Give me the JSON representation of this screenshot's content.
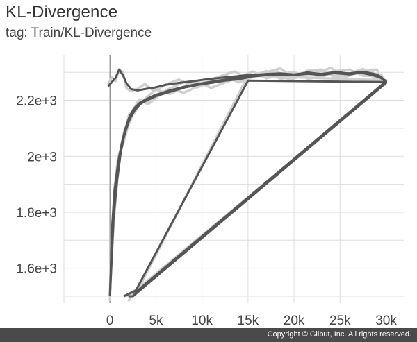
{
  "header": {
    "title": "KL-Divergence",
    "subtitle": "tag: Train/KL-Divergence"
  },
  "footer": {
    "copyright": "Copyright © Gilbut, Inc. All rights reserved."
  },
  "chart_data": {
    "type": "line",
    "title": "KL-Divergence",
    "subtitle": "tag: Train/KL-Divergence",
    "xlabel": "",
    "ylabel": "",
    "xlim": [
      -5000,
      32000
    ],
    "ylim": [
      1500,
      2360
    ],
    "x_ticks": [
      0,
      5000,
      10000,
      15000,
      20000,
      25000,
      30000
    ],
    "x_tick_labels": [
      "0",
      "5k",
      "10k",
      "15k",
      "20k",
      "25k",
      "30k"
    ],
    "y_ticks": [
      1600,
      1800,
      2000,
      2200
    ],
    "y_tick_labels": [
      "1.6e+3",
      "1.8e+3",
      "2e+3",
      "2.2e+3"
    ],
    "grid": true,
    "legend": false,
    "colors": {
      "smoothed": "#555555",
      "raw": "#cfcfcf",
      "grid": "#dddddd"
    },
    "series": [
      {
        "x": [
          0,
          200,
          500,
          900,
          1300,
          1700,
          2100,
          2600,
          3200,
          4000,
          5000,
          6500,
          8000,
          9500,
          11000,
          12500,
          14000,
          15500,
          17000,
          18500,
          20000,
          21500,
          23000,
          24500,
          26000,
          27500,
          29000,
          29500,
          30000
        ],
        "y": [
          1500,
          1730,
          1880,
          1980,
          2050,
          2100,
          2140,
          2170,
          2190,
          2205,
          2220,
          2235,
          2245,
          2255,
          2262,
          2270,
          2275,
          2285,
          2290,
          2292,
          2290,
          2295,
          2290,
          2298,
          2292,
          2300,
          2288,
          2278,
          2270
        ]
      },
      {
        "x": [
          0,
          300,
          700,
          1100,
          1500,
          2000,
          2500,
          3200,
          4000,
          5000,
          6500,
          8000,
          9500,
          11000,
          12500,
          14000,
          15500,
          17000,
          18500,
          20000,
          21500,
          23000,
          24500,
          26000,
          27500,
          29000,
          29500,
          30000,
          15000,
          2800,
          1500
        ],
        "y": [
          1500,
          1760,
          1900,
          2000,
          2070,
          2120,
          2160,
          2185,
          2200,
          2215,
          2230,
          2245,
          2255,
          2265,
          2272,
          2280,
          2288,
          2292,
          2295,
          2290,
          2300,
          2292,
          2302,
          2295,
          2300,
          2290,
          2280,
          2265,
          2270,
          1520,
          1500
        ]
      },
      {
        "x": [
          0,
          400,
          800,
          1200,
          1600,
          2100,
          2700,
          3400,
          4200,
          5200,
          6500,
          8000,
          9500,
          11000,
          12500,
          14000,
          15500,
          17000,
          18500,
          20000,
          21500,
          23000,
          24500,
          26000,
          27500,
          29000,
          29500,
          30000,
          2500,
          2000
        ],
        "y": [
          1500,
          1780,
          1920,
          2020,
          2080,
          2130,
          2165,
          2190,
          2205,
          2220,
          2235,
          2248,
          2258,
          2266,
          2274,
          2282,
          2290,
          2294,
          2296,
          2292,
          2298,
          2294,
          2300,
          2296,
          2302,
          2292,
          2282,
          2262,
          1500,
          1500
        ]
      },
      {
        "x": [
          -200,
          200,
          600,
          1000,
          1400,
          1800,
          2300,
          3000,
          3800,
          4800,
          6000,
          7500,
          9000,
          10500,
          12000,
          13500,
          15000,
          16500,
          18000,
          19500,
          21000,
          22500,
          24000,
          25500,
          27000,
          28500,
          29500,
          30000,
          3000,
          2500
        ],
        "y": [
          2250,
          2265,
          2280,
          2310,
          2290,
          2260,
          2240,
          2235,
          2240,
          2245,
          2255,
          2262,
          2268,
          2275,
          2280,
          2285,
          2290,
          2292,
          2295,
          2290,
          2296,
          2292,
          2298,
          2294,
          2300,
          2290,
          2280,
          2268,
          1520,
          1500
        ]
      }
    ]
  }
}
